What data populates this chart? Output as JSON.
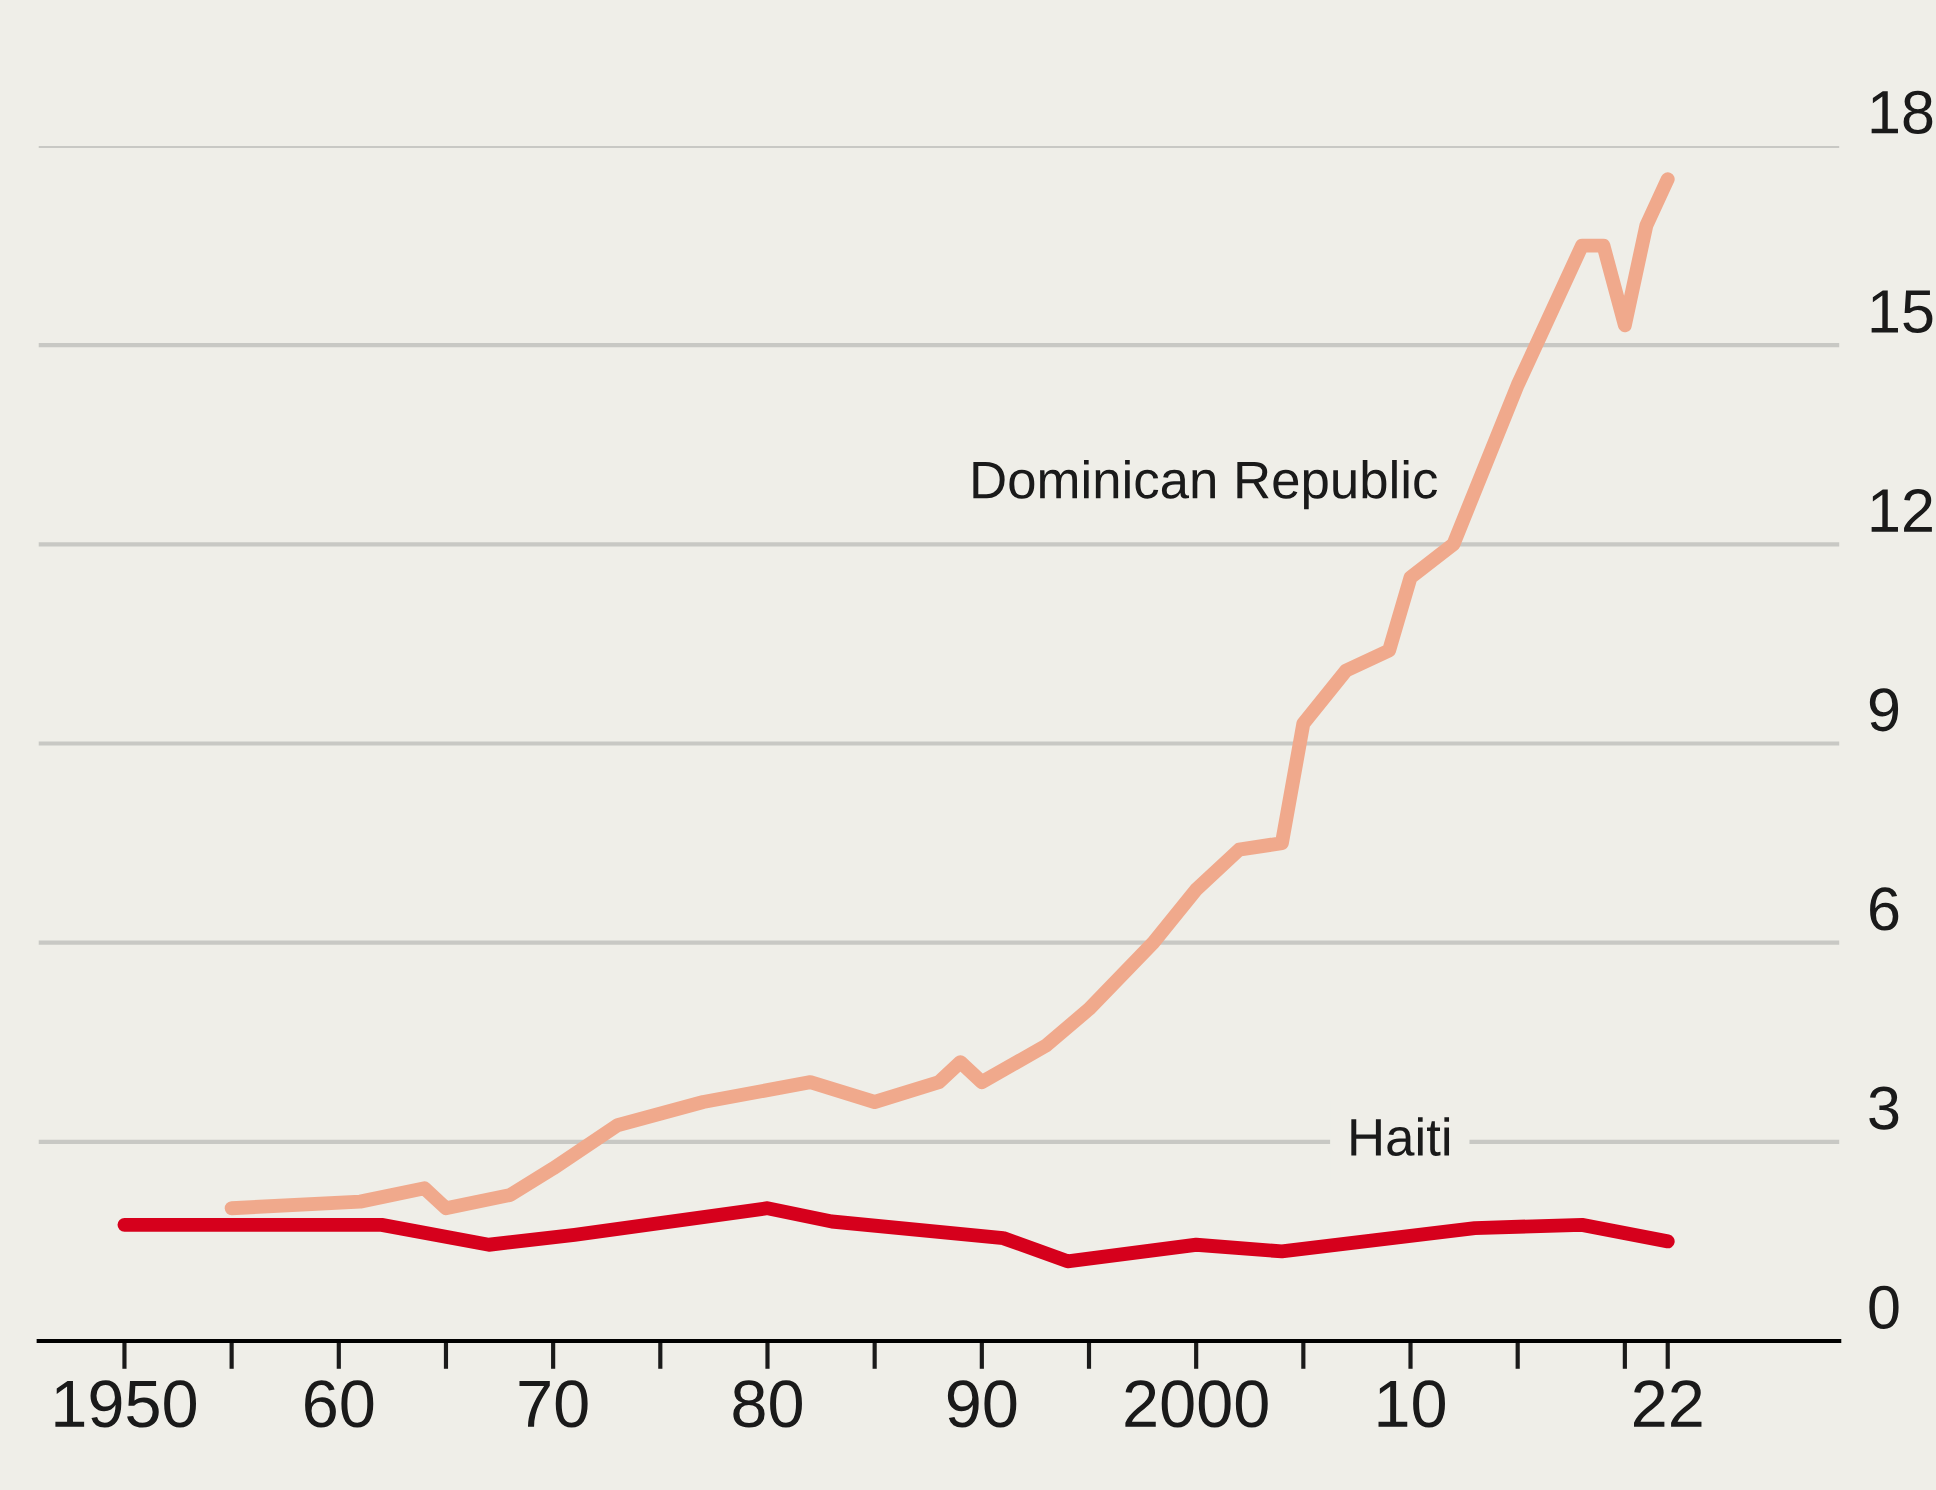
{
  "chart_data": {
    "type": "line",
    "series": [
      {
        "name": "Dominican Republic",
        "color": "#f0a98c",
        "x": [
          1955,
          1961,
          1964,
          1965,
          1968,
          1970,
          1973,
          1977,
          1982,
          1985,
          1988,
          1989,
          1990,
          1993,
          1995,
          1998,
          2000,
          2002,
          2004,
          2005,
          2007,
          2009,
          2010,
          2012,
          2015,
          2018,
          2019,
          2020,
          2021,
          2022
        ],
        "values": [
          2.0,
          2.1,
          2.3,
          2.0,
          2.2,
          2.6,
          3.25,
          3.6,
          3.9,
          3.6,
          3.9,
          4.2,
          3.9,
          4.45,
          5.0,
          6.0,
          6.8,
          7.4,
          7.5,
          9.3,
          10.1,
          10.4,
          11.5,
          12.0,
          14.4,
          16.5,
          16.5,
          15.3,
          16.8,
          17.5
        ]
      },
      {
        "name": "Haiti",
        "color": "#d6001c",
        "x": [
          1950,
          1962,
          1967,
          1971,
          1980,
          1983,
          1991,
          1994,
          2000,
          2004,
          2013,
          2018,
          2022
        ],
        "values": [
          1.75,
          1.75,
          1.45,
          1.6,
          2.0,
          1.8,
          1.55,
          1.2,
          1.45,
          1.35,
          1.7,
          1.75,
          1.5
        ]
      }
    ],
    "xlim": [
      1946,
      2030
    ],
    "xticks": [
      1950,
      {
        "value": 1955,
        "label": null
      },
      {
        "value": 1960,
        "label": "60"
      },
      {
        "value": 1965,
        "label": null
      },
      {
        "value": 1970,
        "label": "70"
      },
      {
        "value": 1975,
        "label": null
      },
      {
        "value": 1980,
        "label": "80"
      },
      {
        "value": 1985,
        "label": null
      },
      {
        "value": 1990,
        "label": "90"
      },
      {
        "value": 1995,
        "label": null
      },
      2000,
      {
        "value": 2005,
        "label": null
      },
      {
        "value": 2010,
        "label": "10"
      },
      {
        "value": 2015,
        "label": null
      },
      {
        "value": 2020,
        "label": null
      },
      {
        "value": 2022,
        "label": "22"
      }
    ],
    "ylim": [
      0,
      18
    ],
    "yticks": [
      0,
      3,
      6,
      9,
      12,
      15,
      18
    ],
    "grid": "y",
    "legend": false,
    "line_style": "solid",
    "marker": "none"
  }
}
